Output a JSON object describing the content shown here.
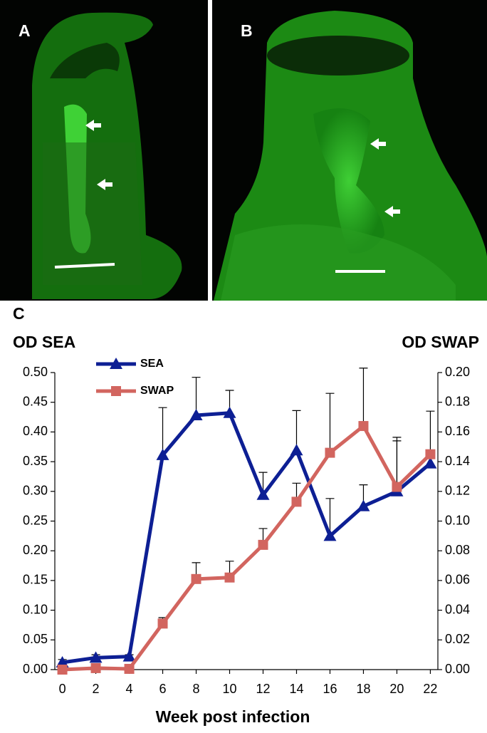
{
  "panel_labels": [
    "A",
    "B",
    "C"
  ],
  "chart_data": {
    "type": "line",
    "y_label": "OD SEA",
    "y2_label": "OD SWAP",
    "x_label": "Week post infection",
    "x": [
      0,
      2,
      4,
      6,
      8,
      10,
      12,
      14,
      16,
      18,
      20,
      22
    ],
    "xlim": [
      -0.45,
      22.45
    ],
    "xticks": [
      0,
      2,
      4,
      6,
      8,
      10,
      12,
      14,
      16,
      18,
      20,
      22
    ],
    "ylim": [
      0,
      0.5
    ],
    "yticks": [
      {
        "value": 0,
        "label": "0.00"
      },
      {
        "value": 0.05,
        "label": "0.05"
      },
      {
        "value": 0.1,
        "label": "0.10"
      },
      {
        "value": 0.15,
        "label": "0.15"
      },
      {
        "value": 0.2,
        "label": "0.20"
      },
      {
        "value": 0.25,
        "label": "0.25"
      },
      {
        "value": 0.3,
        "label": "0.30"
      },
      {
        "value": 0.35,
        "label": "0.35"
      },
      {
        "value": 0.4,
        "label": "0.40"
      },
      {
        "value": 0.45,
        "label": "0.45"
      },
      {
        "value": 0.5,
        "label": "0.50"
      }
    ],
    "y2lim": [
      0,
      0.2
    ],
    "y2ticks": [
      {
        "value": 0,
        "label": "0.00"
      },
      {
        "value": 0.02,
        "label": "0.02"
      },
      {
        "value": 0.04,
        "label": "0.04"
      },
      {
        "value": 0.06,
        "label": "0.06"
      },
      {
        "value": 0.08,
        "label": "0.08"
      },
      {
        "value": 0.1,
        "label": "0.10"
      },
      {
        "value": 0.12,
        "label": "0.12"
      },
      {
        "value": 0.14,
        "label": "0.14"
      },
      {
        "value": 0.16,
        "label": "0.16"
      },
      {
        "value": 0.18,
        "label": "0.18"
      },
      {
        "value": 0.2,
        "label": "0.20"
      }
    ],
    "legend": "upper left",
    "series": [
      {
        "name": "SEA",
        "color": "#0d1f94",
        "marker": "triangle",
        "values": [
          0.012,
          0.02,
          0.022,
          0.361,
          0.428,
          0.432,
          0.294,
          0.369,
          0.225,
          0.275,
          0.3,
          0.347
        ],
        "errors": [
          0.005,
          0.005,
          0.003,
          0.08,
          0.064,
          0.038,
          0.038,
          0.067,
          0.063,
          0.036,
          0.091,
          null
        ]
      },
      {
        "name": "SWAP",
        "color": "#d2655f",
        "marker": "square",
        "axis": "y2",
        "values": [
          0,
          0.001,
          0.0005,
          0.031,
          0.061,
          0.062,
          0.084,
          0.113,
          0.146,
          0.164,
          0.123,
          0.145
        ],
        "errors": [
          null,
          null,
          null,
          0.004,
          0.011,
          0.011,
          0.011,
          0.0125,
          0.04,
          0.039,
          0.031,
          0.029
        ]
      }
    ]
  }
}
